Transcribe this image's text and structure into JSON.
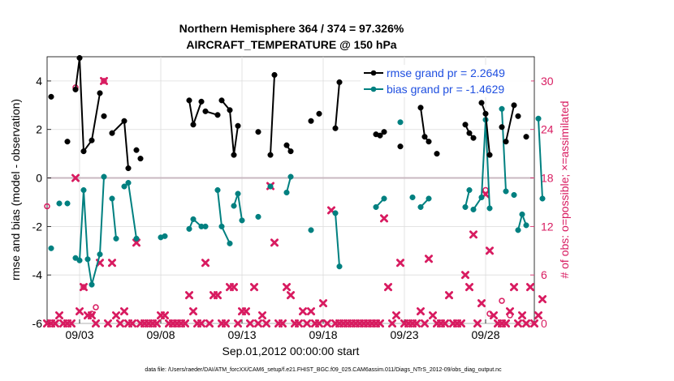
{
  "colors": {
    "rmse": "#000000",
    "bias": "#008080",
    "obs": "#d81b60",
    "zero_line": "#c8b8c0",
    "legend_text": "#1f4fe0",
    "axis": "#000000",
    "grid": "#dcdcdc"
  },
  "chart_data": {
    "type": "line",
    "title": "Northern Hemisphere 364 / 374 = 97.326%",
    "subtitle": "AIRCRAFT_TEMPERATURE @ 150 hPa",
    "xlabel": "Sep.01,2012 00:00:00 start",
    "ylabel": "rmse and bias (model - observation)",
    "y2label": "# of obs: o=possible; ×=assimilated",
    "footnote": "data file: /Users/raeder/DAI/ATM_forcXX/CAM6_setup/f.e21.FHIST_BGC.f09_025.CAM6assim.011/Diags_NTrS_2012-09/obs_diag_output.nc",
    "x_ticks": [
      {
        "label": "09/03",
        "day": 3
      },
      {
        "label": "09/08",
        "day": 8
      },
      {
        "label": "09/13",
        "day": 13
      },
      {
        "label": "09/18",
        "day": 18
      },
      {
        "label": "09/23",
        "day": 23
      },
      {
        "label": "09/28",
        "day": 28
      }
    ],
    "xlim": [
      1,
      31
    ],
    "ylim": [
      -6,
      5
    ],
    "y_ticks": [
      "-6",
      "-4",
      "-2",
      "0",
      "2",
      "4"
    ],
    "y2lim": [
      0,
      33
    ],
    "y2_ticks": [
      "0",
      "6",
      "12",
      "18",
      "24",
      "30"
    ],
    "grid": true,
    "legend_position": "top-right",
    "series": [
      {
        "name": "rmse grand pr = 2.2649",
        "points": [
          [
            1.25,
            3.35
          ],
          [
            2.25,
            1.5
          ],
          [
            2.75,
            3.65
          ],
          [
            3.0,
            4.95
          ],
          [
            3.25,
            1.1
          ],
          [
            3.75,
            1.55
          ],
          [
            4.25,
            3.5
          ],
          [
            4.5,
            2.55
          ],
          [
            5.0,
            1.85
          ],
          [
            5.75,
            2.35
          ],
          [
            6.0,
            0.4
          ],
          [
            6.5,
            1.15
          ],
          [
            6.75,
            0.8
          ],
          [
            9.75,
            3.2
          ],
          [
            10.0,
            2.2
          ],
          [
            10.5,
            3.15
          ],
          [
            10.75,
            2.75
          ],
          [
            11.5,
            2.6
          ],
          [
            11.75,
            3.2
          ],
          [
            12.25,
            2.8
          ],
          [
            12.5,
            0.95
          ],
          [
            12.75,
            2.15
          ],
          [
            14.0,
            1.9
          ],
          [
            14.75,
            0.95
          ],
          [
            15.0,
            4.25
          ],
          [
            15.75,
            1.35
          ],
          [
            16.0,
            1.1
          ],
          [
            17.25,
            2.35
          ],
          [
            17.75,
            2.65
          ],
          [
            18.75,
            2.05
          ],
          [
            19.0,
            3.95
          ],
          [
            21.25,
            1.8
          ],
          [
            21.5,
            1.75
          ],
          [
            21.75,
            1.9
          ],
          [
            22.75,
            1.3
          ],
          [
            24.0,
            2.9
          ],
          [
            24.25,
            1.7
          ],
          [
            24.5,
            1.5
          ],
          [
            25.0,
            1.0
          ],
          [
            26.75,
            2.2
          ],
          [
            27.0,
            1.85
          ],
          [
            27.25,
            1.65
          ],
          [
            27.75,
            3.1
          ],
          [
            28.0,
            2.65
          ],
          [
            28.25,
            0.95
          ],
          [
            29.0,
            2.1
          ],
          [
            29.25,
            1.5
          ],
          [
            29.75,
            3.0
          ],
          [
            30.0,
            2.55
          ],
          [
            30.5,
            1.7
          ]
        ],
        "segments": [
          [
            0,
            0
          ],
          [
            1,
            1
          ],
          [
            2,
            6
          ],
          [
            7,
            7
          ],
          [
            8,
            10
          ],
          [
            11,
            11
          ],
          [
            12,
            12
          ],
          [
            13,
            15
          ],
          [
            16,
            17
          ],
          [
            18,
            21
          ],
          [
            22,
            22
          ],
          [
            23,
            24
          ],
          [
            25,
            26
          ],
          [
            27,
            27
          ],
          [
            28,
            28
          ],
          [
            29,
            30
          ],
          [
            31,
            33
          ],
          [
            34,
            34
          ],
          [
            35,
            37
          ],
          [
            38,
            38
          ],
          [
            39,
            41
          ],
          [
            42,
            44
          ],
          [
            45,
            45
          ],
          [
            46,
            47
          ],
          [
            48,
            48
          ],
          [
            49,
            49
          ]
        ]
      },
      {
        "name": "bias grand pr = -1.4629",
        "points": [
          [
            1.25,
            -2.9
          ],
          [
            1.75,
            -1.05
          ],
          [
            2.25,
            -1.05
          ],
          [
            2.75,
            -3.3
          ],
          [
            3.0,
            -3.4
          ],
          [
            3.25,
            -0.5
          ],
          [
            3.5,
            -3.35
          ],
          [
            3.75,
            -4.4
          ],
          [
            4.25,
            -3.15
          ],
          [
            4.5,
            0.05
          ],
          [
            5.0,
            -0.85
          ],
          [
            5.25,
            -2.5
          ],
          [
            5.75,
            -0.35
          ],
          [
            6.0,
            -0.2
          ],
          [
            6.5,
            -2.5
          ],
          [
            8.0,
            -2.45
          ],
          [
            8.25,
            -2.4
          ],
          [
            9.75,
            -2.1
          ],
          [
            10.0,
            -1.7
          ],
          [
            10.5,
            -2.0
          ],
          [
            10.75,
            -2.0
          ],
          [
            11.5,
            -0.5
          ],
          [
            11.75,
            -2.0
          ],
          [
            12.25,
            -2.7
          ],
          [
            12.5,
            -1.15
          ],
          [
            12.75,
            -0.65
          ],
          [
            13.0,
            -1.75
          ],
          [
            14.0,
            -1.6
          ],
          [
            14.75,
            -0.35
          ],
          [
            15.75,
            -0.6
          ],
          [
            16.0,
            0.05
          ],
          [
            17.25,
            -2.15
          ],
          [
            18.75,
            -1.45
          ],
          [
            19.0,
            -3.65
          ],
          [
            21.25,
            -1.2
          ],
          [
            21.75,
            -0.85
          ],
          [
            22.75,
            2.3
          ],
          [
            23.5,
            -0.8
          ],
          [
            24.0,
            -1.2
          ],
          [
            24.5,
            -0.85
          ],
          [
            26.75,
            -1.2
          ],
          [
            27.0,
            -0.5
          ],
          [
            27.25,
            -1.3
          ],
          [
            27.75,
            -0.8
          ],
          [
            28.0,
            2.4
          ],
          [
            28.25,
            -1.25
          ],
          [
            29.0,
            2.85
          ],
          [
            29.25,
            -0.55
          ],
          [
            29.75,
            -0.7
          ],
          [
            30.0,
            -2.15
          ],
          [
            30.25,
            -1.5
          ],
          [
            30.5,
            -1.95
          ],
          [
            31.25,
            2.45
          ],
          [
            31.5,
            -0.85
          ]
        ],
        "segments": [
          [
            0,
            0
          ],
          [
            1,
            1
          ],
          [
            2,
            2
          ],
          [
            3,
            9
          ],
          [
            10,
            11
          ],
          [
            12,
            14
          ],
          [
            15,
            16
          ],
          [
            17,
            20
          ],
          [
            21,
            23
          ],
          [
            24,
            26
          ],
          [
            27,
            27
          ],
          [
            28,
            28
          ],
          [
            29,
            30
          ],
          [
            31,
            31
          ],
          [
            32,
            33
          ],
          [
            34,
            35
          ],
          [
            36,
            36
          ],
          [
            37,
            37
          ],
          [
            38,
            39
          ],
          [
            40,
            41
          ],
          [
            42,
            45
          ],
          [
            46,
            47
          ],
          [
            48,
            48
          ],
          [
            49,
            51
          ],
          [
            52,
            53
          ]
        ]
      },
      {
        "name": "assimilated",
        "marker": "x",
        "points": [
          [
            1.0,
            0
          ],
          [
            1.25,
            0
          ],
          [
            1.5,
            0
          ],
          [
            1.75,
            1
          ],
          [
            2.0,
            0
          ],
          [
            2.25,
            0
          ],
          [
            2.5,
            0
          ],
          [
            2.75,
            18
          ],
          [
            3.0,
            1.5
          ],
          [
            3.25,
            4.5
          ],
          [
            3.5,
            1
          ],
          [
            3.75,
            1
          ],
          [
            4.0,
            0
          ],
          [
            4.25,
            7.5
          ],
          [
            4.5,
            30
          ],
          [
            4.75,
            0
          ],
          [
            5.0,
            7.5
          ],
          [
            5.25,
            1
          ],
          [
            5.5,
            0
          ],
          [
            5.75,
            1.5
          ],
          [
            6.0,
            0
          ],
          [
            6.25,
            0
          ],
          [
            6.5,
            10
          ],
          [
            6.75,
            0
          ],
          [
            7.0,
            0
          ],
          [
            7.25,
            0
          ],
          [
            7.5,
            0
          ],
          [
            7.75,
            0
          ],
          [
            8.0,
            1
          ],
          [
            8.25,
            1
          ],
          [
            8.5,
            0
          ],
          [
            8.75,
            0
          ],
          [
            9.0,
            0
          ],
          [
            9.25,
            0
          ],
          [
            9.5,
            0
          ],
          [
            9.75,
            3.5
          ],
          [
            10.0,
            1.5
          ],
          [
            10.25,
            0
          ],
          [
            10.5,
            0
          ],
          [
            10.75,
            7.5
          ],
          [
            11.0,
            0
          ],
          [
            11.25,
            3.5
          ],
          [
            11.5,
            3.5
          ],
          [
            11.75,
            0
          ],
          [
            12.0,
            0
          ],
          [
            12.25,
            4.5
          ],
          [
            12.5,
            4.5
          ],
          [
            12.75,
            0
          ],
          [
            13.0,
            1.5
          ],
          [
            13.25,
            1.5
          ],
          [
            13.5,
            0
          ],
          [
            13.75,
            4.5
          ],
          [
            14.0,
            0
          ],
          [
            14.25,
            1
          ],
          [
            14.5,
            0
          ],
          [
            14.75,
            17
          ],
          [
            15.0,
            10
          ],
          [
            15.25,
            0
          ],
          [
            15.5,
            0
          ],
          [
            15.75,
            4.5
          ],
          [
            16.0,
            3.5
          ],
          [
            16.25,
            0
          ],
          [
            16.5,
            0
          ],
          [
            16.75,
            1.5
          ],
          [
            17.0,
            0
          ],
          [
            17.25,
            1.5
          ],
          [
            17.5,
            0
          ],
          [
            17.75,
            0
          ],
          [
            18.0,
            2.5
          ],
          [
            18.25,
            0
          ],
          [
            18.5,
            14
          ],
          [
            18.75,
            0
          ],
          [
            19.0,
            0
          ],
          [
            19.25,
            0
          ],
          [
            19.5,
            0
          ],
          [
            19.75,
            0
          ],
          [
            20.0,
            0
          ],
          [
            20.25,
            0
          ],
          [
            20.5,
            0
          ],
          [
            20.75,
            0
          ],
          [
            21.0,
            0
          ],
          [
            21.25,
            0
          ],
          [
            21.5,
            0
          ],
          [
            21.75,
            13
          ],
          [
            22.0,
            4.5
          ],
          [
            22.25,
            0
          ],
          [
            22.5,
            1
          ],
          [
            22.75,
            7.5
          ],
          [
            23.0,
            0
          ],
          [
            23.25,
            0
          ],
          [
            23.5,
            0
          ],
          [
            23.75,
            0
          ],
          [
            24.0,
            1.5
          ],
          [
            24.25,
            0
          ],
          [
            24.5,
            8
          ],
          [
            24.75,
            1
          ],
          [
            25.0,
            0
          ],
          [
            25.25,
            0
          ],
          [
            25.5,
            0
          ],
          [
            25.75,
            3.5
          ],
          [
            26.0,
            0
          ],
          [
            26.25,
            0
          ],
          [
            26.5,
            0
          ],
          [
            26.75,
            6
          ],
          [
            27.0,
            4.5
          ],
          [
            27.25,
            11
          ],
          [
            27.5,
            0
          ],
          [
            27.75,
            2.5
          ],
          [
            28.0,
            16
          ],
          [
            28.25,
            9
          ],
          [
            28.5,
            1
          ],
          [
            28.75,
            0
          ],
          [
            29.0,
            0
          ],
          [
            29.25,
            0
          ],
          [
            29.5,
            1.5
          ],
          [
            29.75,
            4.5
          ],
          [
            30.0,
            0
          ],
          [
            30.25,
            1
          ],
          [
            30.5,
            0
          ],
          [
            30.75,
            4.5
          ],
          [
            31.0,
            0
          ],
          [
            31.25,
            1
          ],
          [
            31.5,
            3
          ]
        ]
      },
      {
        "name": "possible",
        "marker": "o",
        "points": [
          [
            1.0,
            14.5
          ],
          [
            2.75,
            29.2
          ],
          [
            3.25,
            4.5
          ],
          [
            3.75,
            1.2
          ],
          [
            4.0,
            2.0
          ],
          [
            4.5,
            30.0
          ],
          [
            28.0,
            16.5
          ],
          [
            28.25,
            1.2
          ],
          [
            29.0,
            2.8
          ],
          [
            29.5,
            1.0
          ]
        ]
      }
    ]
  }
}
